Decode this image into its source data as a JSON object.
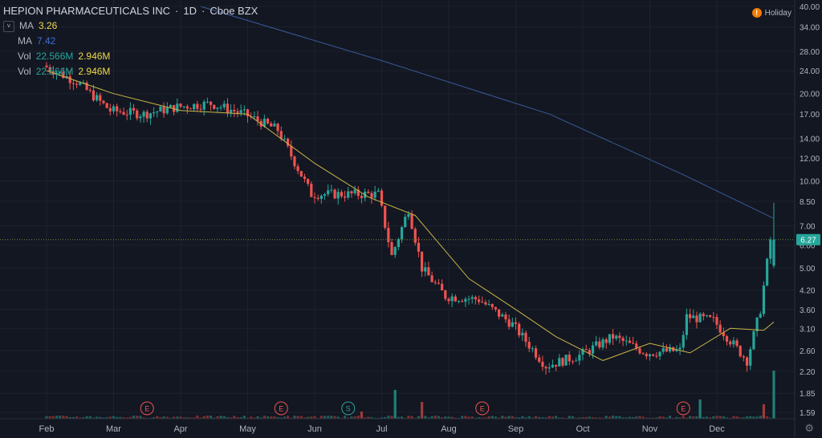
{
  "header": {
    "symbol": "HEPION PHARMACEUTICALS INC",
    "interval": "1D",
    "exchange": "Cboe BZX"
  },
  "legend": [
    {
      "label": "MA",
      "value": "3.26",
      "color": "#f0d84a"
    },
    {
      "label": "MA",
      "value": "7.42",
      "color": "#3f6fd8"
    },
    {
      "label": "Vol",
      "value": "22.566M",
      "value2": "2.946M"
    },
    {
      "label": "Vol",
      "value": "22.566M",
      "value2": "2.946M"
    }
  ],
  "holiday": {
    "icon": "!",
    "label": "Holiday"
  },
  "colors": {
    "background": "#131722",
    "up": "#26a69a",
    "down": "#ef5350",
    "ma_fast": "#c9b548",
    "ma_slow": "#3a5a9a",
    "grid": "#1e222d",
    "price_line": "#6b8f3a"
  },
  "chart_data": {
    "type": "candlestick",
    "title": "HEPION PHARMACEUTICALS INC · 1D · Cboe BZX",
    "y_scale": "log",
    "ylim": [
      1.55,
      40
    ],
    "y_ticks": [
      1.59,
      1.85,
      2.2,
      2.6,
      3.1,
      3.6,
      4.2,
      5.0,
      6.0,
      7.0,
      8.5,
      10.0,
      12.0,
      14.0,
      17.0,
      20.0,
      24.0,
      28.0,
      34.0,
      40.0
    ],
    "y_tick_labels": [
      "1.59",
      "1.85",
      "2.20",
      "2.60",
      "3.10",
      "3.60",
      "4.20",
      "5.00",
      "6.00",
      "7.00",
      "8.50",
      "10.00",
      "12.00",
      "14.00",
      "17.00",
      "20.00",
      "24.00",
      "28.00",
      "34.00",
      "40.00"
    ],
    "x_tick_labels": [
      "Feb",
      "Mar",
      "Apr",
      "May",
      "Jun",
      "Jul",
      "Aug",
      "Sep",
      "Oct",
      "Nov",
      "Dec"
    ],
    "last_price": "6.27",
    "events": [
      {
        "label": "E",
        "month": "Mar"
      },
      {
        "label": "E",
        "month": "May"
      },
      {
        "label": "S",
        "month": "Jun"
      },
      {
        "label": "E",
        "month": "Aug"
      },
      {
        "label": "E",
        "month": "Nov"
      }
    ],
    "price_path": [
      {
        "month_index": 0.0,
        "close": 25
      },
      {
        "month_index": 0.5,
        "close": 22
      },
      {
        "month_index": 1.0,
        "close": 17.5
      },
      {
        "month_index": 1.5,
        "close": 17
      },
      {
        "month_index": 2.0,
        "close": 18
      },
      {
        "month_index": 2.5,
        "close": 18.5
      },
      {
        "month_index": 3.0,
        "close": 17
      },
      {
        "month_index": 3.5,
        "close": 15
      },
      {
        "month_index": 4.0,
        "close": 9
      },
      {
        "month_index": 4.5,
        "close": 9
      },
      {
        "month_index": 5.0,
        "close": 9
      },
      {
        "month_index": 5.2,
        "close": 5.5
      },
      {
        "month_index": 5.45,
        "close": 8
      },
      {
        "month_index": 5.65,
        "close": 5.0
      },
      {
        "month_index": 6.0,
        "close": 4.0
      },
      {
        "month_index": 6.5,
        "close": 3.9
      },
      {
        "month_index": 7.0,
        "close": 3.2
      },
      {
        "month_index": 7.5,
        "close": 2.3
      },
      {
        "month_index": 8.0,
        "close": 2.5
      },
      {
        "month_index": 8.5,
        "close": 2.9
      },
      {
        "month_index": 9.0,
        "close": 2.55
      },
      {
        "month_index": 9.5,
        "close": 2.6
      },
      {
        "month_index": 9.6,
        "close": 3.4
      },
      {
        "month_index": 10.0,
        "close": 3.3
      },
      {
        "month_index": 10.5,
        "close": 2.4
      },
      {
        "month_index": 10.7,
        "close": 3.6
      },
      {
        "month_index": 10.85,
        "close": 6.27
      }
    ],
    "ma_fast": [
      {
        "month_index": 0.0,
        "value": 24
      },
      {
        "month_index": 1.0,
        "value": 20
      },
      {
        "month_index": 2.0,
        "value": 17.5
      },
      {
        "month_index": 3.0,
        "value": 17
      },
      {
        "month_index": 4.0,
        "value": 11.5
      },
      {
        "month_index": 4.8,
        "value": 8.8
      },
      {
        "month_index": 5.5,
        "value": 7.6
      },
      {
        "month_index": 6.3,
        "value": 4.6
      },
      {
        "month_index": 7.0,
        "value": 3.6
      },
      {
        "month_index": 7.6,
        "value": 2.9
      },
      {
        "month_index": 8.3,
        "value": 2.4
      },
      {
        "month_index": 9.0,
        "value": 2.75
      },
      {
        "month_index": 9.6,
        "value": 2.55
      },
      {
        "month_index": 10.2,
        "value": 3.1
      },
      {
        "month_index": 10.7,
        "value": 3.05
      },
      {
        "month_index": 10.85,
        "value": 3.26
      }
    ],
    "ma_slow": [
      {
        "month_index": 2.3,
        "value": 40
      },
      {
        "month_index": 5.0,
        "value": 26
      },
      {
        "month_index": 7.5,
        "value": 17
      },
      {
        "month_index": 9.5,
        "value": 10.5
      },
      {
        "month_index": 10.85,
        "value": 7.42
      }
    ],
    "volume": {
      "last": "2.946M",
      "spikes": [
        {
          "month_index": 4.7,
          "relative": 0.15
        },
        {
          "month_index": 5.2,
          "relative": 0.6
        },
        {
          "month_index": 5.6,
          "relative": 0.35
        },
        {
          "month_index": 9.75,
          "relative": 0.4
        },
        {
          "month_index": 10.7,
          "relative": 0.3
        },
        {
          "month_index": 10.85,
          "relative": 1.0
        }
      ]
    }
  }
}
